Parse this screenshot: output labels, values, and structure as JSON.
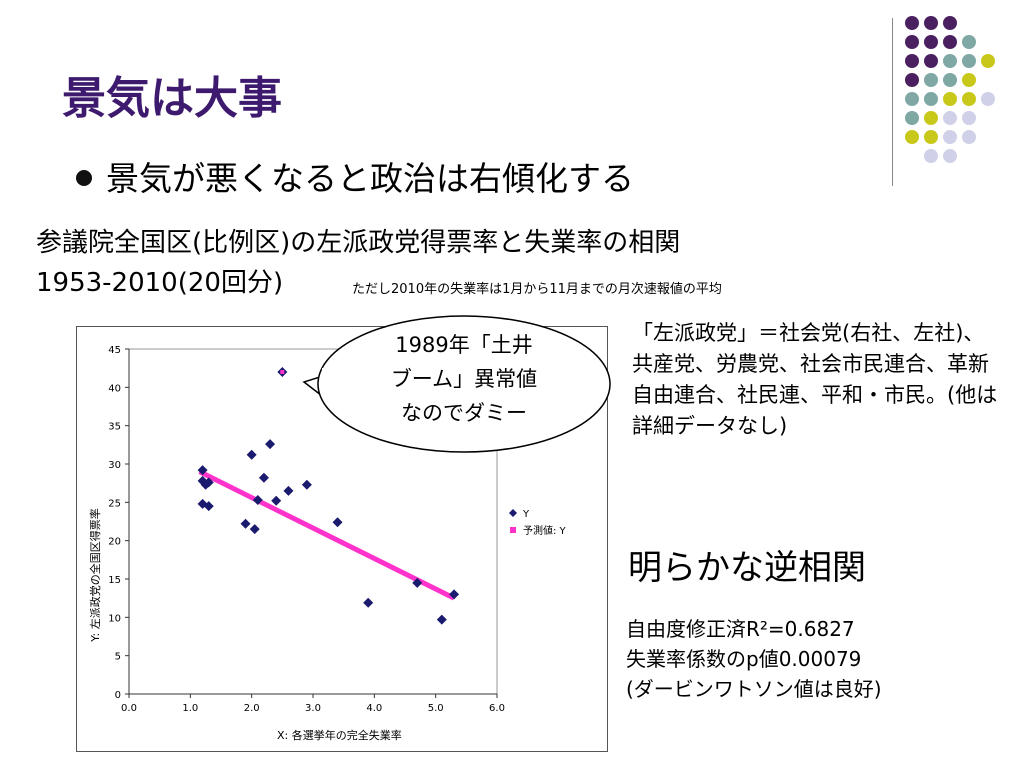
{
  "slide": {
    "title": "景気は大事",
    "bullet": "景気が悪くなると政治は右傾化する",
    "subtitle_line1": "参議院全国区(比例区)の左派政党得票率と失業率の相関",
    "subtitle_line2": "1953-2010(20回分)",
    "note": "ただし2010年の失業率は1月から11月までの月次速報値の平均",
    "callout": [
      "1989年「土井",
      "ブーム」異常値",
      "なのでダミー"
    ],
    "definition": "「左派政党」＝社会党(右社、左社)、共産党、労農党、社会市民連合、革新自由連合、社民連、平和・市民。(他は詳細データなし)",
    "heading2": "明らかな逆相関",
    "stats_line1": "自由度修正済R²=0.6827",
    "stats_line2": "失業率係数のp値0.00079",
    "stats_line3": "(ダービンワトソン値は良好)"
  },
  "decor": {
    "colors": {
      "purple": "#4a2060",
      "teal": "#7fa8a4",
      "yellow": "#c8c81a",
      "lavender": "#d0d0e8"
    }
  },
  "chart_data": {
    "type": "scatter",
    "xlabel": "X:  各選挙年の完全失業率",
    "ylabel": "Y: 左派政党の全国区得票率",
    "xlim": [
      0,
      6
    ],
    "ylim": [
      0,
      45
    ],
    "xticks": [
      "0.0",
      "1.0",
      "2.0",
      "3.0",
      "4.0",
      "5.0",
      "6.0"
    ],
    "yticks": [
      "0",
      "5",
      "10",
      "15",
      "20",
      "25",
      "30",
      "35",
      "40",
      "45"
    ],
    "legend": [
      "Y",
      "予測値: Y"
    ],
    "legend_position": "right",
    "series": [
      {
        "name": "Y",
        "color": "#1a1a6e",
        "points": [
          [
            1.2,
            29.2
          ],
          [
            1.2,
            27.8
          ],
          [
            1.25,
            27.3
          ],
          [
            1.3,
            27.6
          ],
          [
            1.2,
            24.8
          ],
          [
            1.3,
            24.5
          ],
          [
            1.9,
            22.2
          ],
          [
            2.05,
            21.5
          ],
          [
            2.0,
            31.2
          ],
          [
            2.3,
            32.6
          ],
          [
            2.2,
            28.2
          ],
          [
            2.1,
            25.3
          ],
          [
            2.4,
            25.2
          ],
          [
            2.6,
            26.5
          ],
          [
            2.9,
            27.3
          ],
          [
            3.4,
            22.4
          ],
          [
            3.9,
            11.9
          ],
          [
            4.7,
            14.5
          ],
          [
            5.1,
            9.7
          ],
          [
            5.3,
            13.0
          ]
        ]
      },
      {
        "name": "予測値: Y",
        "color": "#ff33cc",
        "points": [
          [
            1.15,
            29.0
          ],
          [
            5.3,
            12.5
          ]
        ]
      }
    ],
    "outlier": [
      2.5,
      42.0
    ]
  }
}
